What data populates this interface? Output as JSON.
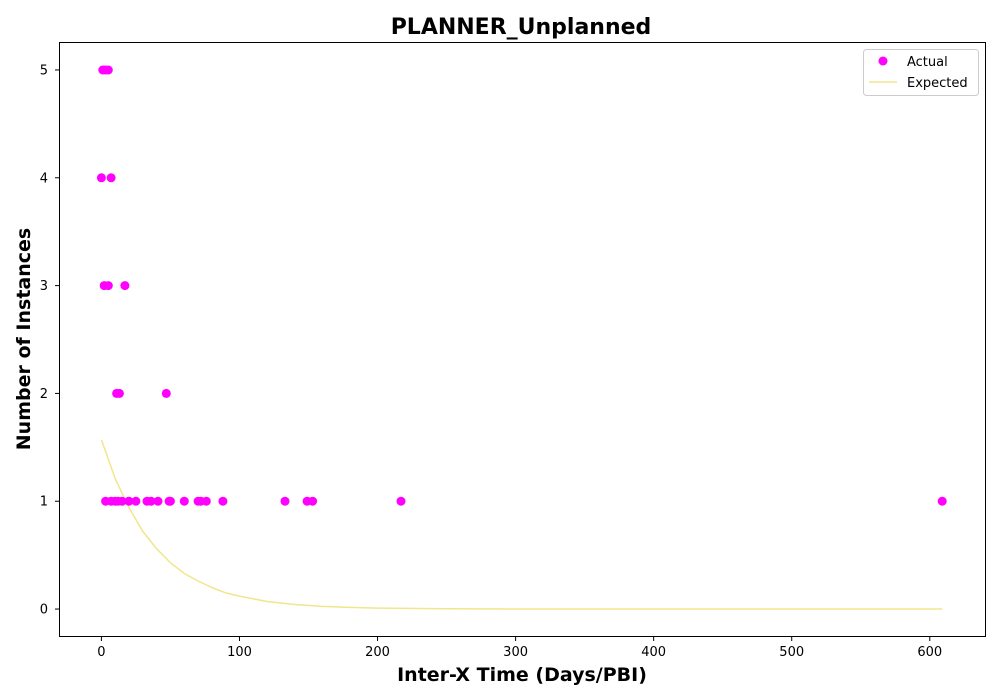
{
  "chart_data": {
    "type": "scatter",
    "title": "PLANNER_Unplanned",
    "xlabel": "Inter-X Time (Days/PBI)",
    "ylabel": "Number of Instances",
    "xlim": [
      -30,
      640
    ],
    "ylim": [
      -0.25,
      5.25
    ],
    "xticks": [
      0,
      100,
      200,
      300,
      400,
      500,
      600
    ],
    "yticks": [
      0,
      1,
      2,
      3,
      4,
      5
    ],
    "grid": false,
    "legend_position": "top-right",
    "series": [
      {
        "name": "Actual",
        "kind": "scatter",
        "color": "#ff00ff",
        "points": [
          {
            "x": 1,
            "y": 5
          },
          {
            "x": 3,
            "y": 5
          },
          {
            "x": 5,
            "y": 5
          },
          {
            "x": 0,
            "y": 4
          },
          {
            "x": 7,
            "y": 4
          },
          {
            "x": 2,
            "y": 3
          },
          {
            "x": 5,
            "y": 3
          },
          {
            "x": 17,
            "y": 3
          },
          {
            "x": 11,
            "y": 2
          },
          {
            "x": 13,
            "y": 2
          },
          {
            "x": 47,
            "y": 2
          },
          {
            "x": 3,
            "y": 1
          },
          {
            "x": 7,
            "y": 1
          },
          {
            "x": 10,
            "y": 1
          },
          {
            "x": 12,
            "y": 1
          },
          {
            "x": 15,
            "y": 1
          },
          {
            "x": 20,
            "y": 1
          },
          {
            "x": 25,
            "y": 1
          },
          {
            "x": 33,
            "y": 1
          },
          {
            "x": 36,
            "y": 1
          },
          {
            "x": 41,
            "y": 1
          },
          {
            "x": 49,
            "y": 1
          },
          {
            "x": 50,
            "y": 1
          },
          {
            "x": 60,
            "y": 1
          },
          {
            "x": 70,
            "y": 1
          },
          {
            "x": 72,
            "y": 1
          },
          {
            "x": 76,
            "y": 1
          },
          {
            "x": 88,
            "y": 1
          },
          {
            "x": 133,
            "y": 1
          },
          {
            "x": 149,
            "y": 1
          },
          {
            "x": 153,
            "y": 1
          },
          {
            "x": 217,
            "y": 1
          },
          {
            "x": 609,
            "y": 1
          }
        ]
      },
      {
        "name": "Expected",
        "kind": "line",
        "color": "#f0e68c",
        "points": [
          {
            "x": 0,
            "y": 1.57
          },
          {
            "x": 10,
            "y": 1.21
          },
          {
            "x": 20,
            "y": 0.94
          },
          {
            "x": 30,
            "y": 0.72
          },
          {
            "x": 40,
            "y": 0.56
          },
          {
            "x": 50,
            "y": 0.43
          },
          {
            "x": 60,
            "y": 0.33
          },
          {
            "x": 70,
            "y": 0.26
          },
          {
            "x": 80,
            "y": 0.2
          },
          {
            "x": 90,
            "y": 0.15
          },
          {
            "x": 100,
            "y": 0.12
          },
          {
            "x": 120,
            "y": 0.07
          },
          {
            "x": 140,
            "y": 0.042
          },
          {
            "x": 160,
            "y": 0.025
          },
          {
            "x": 180,
            "y": 0.015
          },
          {
            "x": 200,
            "y": 0.009
          },
          {
            "x": 250,
            "y": 0.002
          },
          {
            "x": 300,
            "y": 0.0005
          },
          {
            "x": 400,
            "y": 0.0
          },
          {
            "x": 500,
            "y": 0.0
          },
          {
            "x": 609,
            "y": 0.0
          }
        ]
      }
    ]
  }
}
